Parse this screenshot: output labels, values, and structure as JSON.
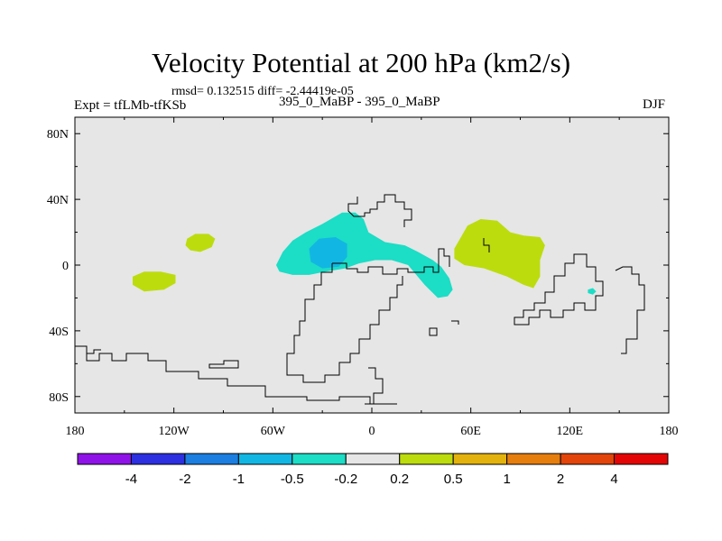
{
  "header": {
    "title": "Velocity Potential at 200 hPa (km2/s)",
    "stats": "rmsd= 0.132515 diff= -2.44419e-05",
    "experiment": "Expt = tfLMb-tfKSb",
    "case_label": "395_0_MaBP - 395_0_MaBP",
    "season": "DJF"
  },
  "chart_data": {
    "type": "heatmap",
    "title": "Velocity Potential at 200 hPa (km2/s)",
    "variable": "velocity potential difference",
    "units": "km2/s",
    "level": "200 hPa",
    "season": "DJF",
    "rmsd": 0.132515,
    "diff": -2.44419e-05,
    "xlim": [
      -180,
      180
    ],
    "ylim": [
      -90,
      90
    ],
    "x_ticks": [
      {
        "value": -180,
        "label": "180"
      },
      {
        "value": -120,
        "label": "120W"
      },
      {
        "value": -60,
        "label": "60W"
      },
      {
        "value": 0,
        "label": "0"
      },
      {
        "value": 60,
        "label": "60E"
      },
      {
        "value": 120,
        "label": "120E"
      },
      {
        "value": 180,
        "label": "180"
      }
    ],
    "y_ticks": [
      {
        "value": 80,
        "label": "80N"
      },
      {
        "value": 40,
        "label": "40N"
      },
      {
        "value": 0,
        "label": "0"
      },
      {
        "value": -40,
        "label": "40S"
      },
      {
        "value": -80,
        "label": "80S"
      }
    ],
    "background_color": "#e6e6e6",
    "contour_levels": [
      "-4",
      "-2",
      "-1",
      "-0.5",
      "-0.2",
      "0.2",
      "0.5",
      "1",
      "2",
      "4"
    ],
    "colorbar_colors": [
      "#8f13e8",
      "#2c30e0",
      "#1b7ee0",
      "#12b6e2",
      "#1cddc6",
      "#e6e6e6",
      "#bddc0e",
      "#e4b20c",
      "#e67e0e",
      "#e2440a",
      "#e40606"
    ],
    "regions": [
      {
        "name": "north-pacific-positive",
        "value_range": "0.2 to 0.5",
        "color": "#bddc0e",
        "outline": [
          [
            -112,
            16
          ],
          [
            -107,
            19
          ],
          [
            -99,
            19
          ],
          [
            -95,
            16
          ],
          [
            -97,
            11
          ],
          [
            -104,
            8
          ],
          [
            -110,
            9
          ],
          [
            -113,
            12
          ]
        ]
      },
      {
        "name": "east-pacific-positive",
        "value_range": "0.2 to 0.5",
        "color": "#bddc0e",
        "outline": [
          [
            -145,
            -7
          ],
          [
            -138,
            -4
          ],
          [
            -128,
            -4
          ],
          [
            -119,
            -6
          ],
          [
            -119,
            -11
          ],
          [
            -126,
            -15
          ],
          [
            -138,
            -16
          ],
          [
            -145,
            -12
          ]
        ]
      },
      {
        "name": "africa-negative",
        "value_range": "-0.5 to -0.2",
        "color": "#1cddc6",
        "outline": [
          [
            -58,
            0
          ],
          [
            -54,
            8
          ],
          [
            -48,
            15
          ],
          [
            -40,
            20
          ],
          [
            -30,
            25
          ],
          [
            -18,
            32
          ],
          [
            -10,
            32
          ],
          [
            -5,
            28
          ],
          [
            -2,
            20
          ],
          [
            8,
            14
          ],
          [
            20,
            12
          ],
          [
            28,
            8
          ],
          [
            37,
            3
          ],
          [
            42,
            -1
          ],
          [
            47,
            -8
          ],
          [
            49,
            -15
          ],
          [
            46,
            -19
          ],
          [
            40,
            -20
          ],
          [
            32,
            -12
          ],
          [
            22,
            0
          ],
          [
            12,
            3
          ],
          [
            2,
            3
          ],
          [
            -8,
            1
          ],
          [
            -16,
            -2
          ],
          [
            -28,
            -4
          ],
          [
            -38,
            -6
          ],
          [
            -48,
            -6
          ],
          [
            -56,
            -4
          ]
        ]
      },
      {
        "name": "africa-negative-core",
        "value_range": "-1 to -0.5",
        "color": "#12b6e2",
        "outline": [
          [
            -38,
            10
          ],
          [
            -32,
            16
          ],
          [
            -22,
            17
          ],
          [
            -15,
            13
          ],
          [
            -15,
            5
          ],
          [
            -20,
            -1
          ],
          [
            -30,
            -2
          ],
          [
            -37,
            2
          ]
        ]
      },
      {
        "name": "asia-positive",
        "value_range": "0.2 to 0.5",
        "color": "#bddc0e",
        "outline": [
          [
            50,
            10
          ],
          [
            58,
            24
          ],
          [
            66,
            28
          ],
          [
            76,
            27
          ],
          [
            84,
            20
          ],
          [
            92,
            18
          ],
          [
            102,
            17
          ],
          [
            105,
            12
          ],
          [
            102,
            3
          ],
          [
            102,
            -7
          ],
          [
            98,
            -14
          ],
          [
            92,
            -12
          ],
          [
            82,
            -7
          ],
          [
            68,
            -2
          ],
          [
            56,
            0
          ],
          [
            50,
            4
          ]
        ]
      },
      {
        "name": "west-pacific-negative",
        "value_range": "-0.5 to -0.2",
        "color": "#1cddc6",
        "outline": [
          [
            131,
            -15
          ],
          [
            134,
            -14
          ],
          [
            136,
            -16
          ],
          [
            134,
            -18
          ],
          [
            131,
            -17
          ]
        ]
      }
    ]
  },
  "colorbar": {
    "labels": [
      "-4",
      "-2",
      "-1",
      "-0.5",
      "-0.2",
      "0.2",
      "0.5",
      "1",
      "2",
      "4"
    ],
    "colors": [
      "#8f13e8",
      "#2c30e0",
      "#1b7ee0",
      "#12b6e2",
      "#1cddc6",
      "#e6e6e6",
      "#bddc0e",
      "#e4b20c",
      "#e67e0e",
      "#e2440a",
      "#e40606"
    ]
  }
}
